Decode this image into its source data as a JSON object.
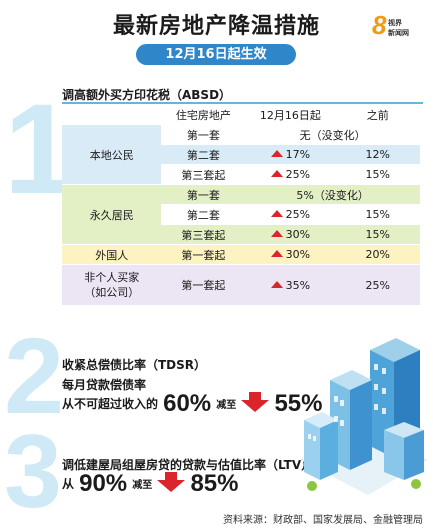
{
  "colors": {
    "accent": "#2f86c8",
    "arrow_up": "#d9252b",
    "arrow_down": "#d9252b",
    "big_number": "#cfe9f6"
  },
  "header": {
    "title": "最新房地产降温措施",
    "date_pill": "12月16日起生效"
  },
  "logo": {
    "glyph": "8",
    "line1": "视界",
    "line2": "新闻网"
  },
  "section_numbers": [
    "1",
    "2",
    "3"
  ],
  "absd": {
    "heading": "调高额外买方印花税（ABSD）",
    "columns": [
      "",
      "住宅房地产",
      "12月16日起",
      "之前"
    ],
    "rows": [
      {
        "group": "本地公民",
        "type": "第一套",
        "merged": "无（没变化）"
      },
      {
        "group": "本地公民",
        "type": "第二套",
        "new": "17%",
        "old": "12%"
      },
      {
        "group": "本地公民",
        "type": "第三套起",
        "new": "25%",
        "old": "15%"
      },
      {
        "group": "永久居民",
        "type": "第一套",
        "merged": "5%（没变化）"
      },
      {
        "group": "永久居民",
        "type": "第二套",
        "new": "25%",
        "old": "15%"
      },
      {
        "group": "永久居民",
        "type": "第三套起",
        "new": "30%",
        "old": "15%"
      },
      {
        "group": "外国人",
        "type": "第一套起",
        "new": "30%",
        "old": "20%"
      },
      {
        "group": "非个人买家（如公司）",
        "type": "第一套起",
        "new": "35%",
        "old": "25%"
      }
    ],
    "group_labels": {
      "citizen": "本地公民",
      "pr": "永久居民",
      "foreigner": "外国人",
      "entity1": "非个人买家",
      "entity2": "（如公司）"
    }
  },
  "tdsr": {
    "line1": "收紧总偿债比率（TDSR）",
    "line2": "每月贷款偿债率",
    "prefix": "从不可超过收入的",
    "from": "60%",
    "mid": "减至",
    "to": "55%"
  },
  "ltv": {
    "line1": "调低建屋局组屋房贷的贷款与估值比率（LTV）",
    "prefix": "从",
    "from": "90%",
    "mid": "减至",
    "to": "85%"
  },
  "source": "资料来源：财政部、国家发展局、金融管理局"
}
